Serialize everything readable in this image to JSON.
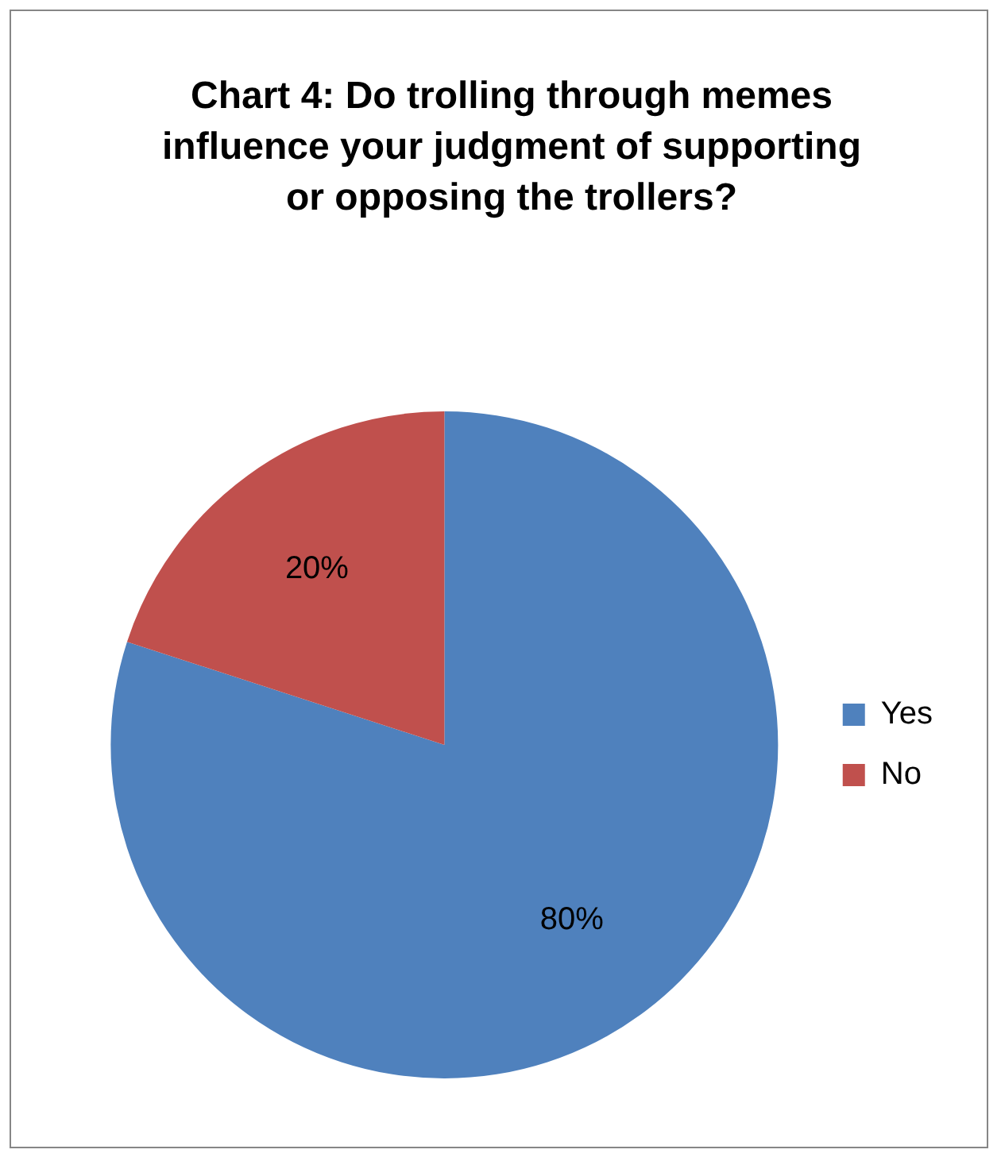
{
  "chart_data": {
    "type": "pie",
    "title": "Chart 4: Do trolling through memes influence your judgment of supporting or opposing the trollers?",
    "categories": [
      "Yes",
      "No"
    ],
    "values": [
      80,
      20
    ],
    "colors": [
      "#4f81bd",
      "#c0504d"
    ],
    "value_labels": [
      "80%",
      "20%"
    ],
    "legend": "right"
  }
}
